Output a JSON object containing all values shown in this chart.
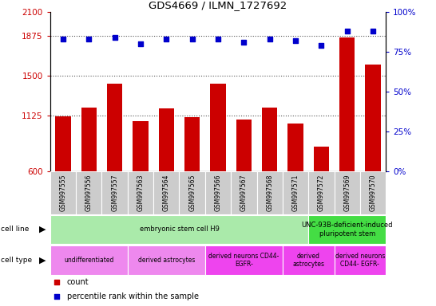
{
  "title": "GDS4669 / ILMN_1727692",
  "samples": [
    "GSM997555",
    "GSM997556",
    "GSM997557",
    "GSM997563",
    "GSM997564",
    "GSM997565",
    "GSM997566",
    "GSM997567",
    "GSM997568",
    "GSM997571",
    "GSM997572",
    "GSM997569",
    "GSM997570"
  ],
  "counts": [
    1120,
    1200,
    1430,
    1070,
    1190,
    1110,
    1430,
    1090,
    1200,
    1050,
    830,
    1860,
    1610
  ],
  "percentiles": [
    83,
    83,
    84,
    80,
    83,
    83,
    83,
    81,
    83,
    82,
    79,
    88,
    88
  ],
  "ylim_left": [
    600,
    2100
  ],
  "ylim_right": [
    0,
    100
  ],
  "yticks_left": [
    600,
    1125,
    1500,
    1875,
    2100
  ],
  "yticks_right": [
    0,
    25,
    50,
    75,
    100
  ],
  "bar_color": "#cc0000",
  "scatter_color": "#0000cc",
  "cell_line_groups": [
    {
      "label": "embryonic stem cell H9",
      "start": 0,
      "end": 10,
      "color": "#aaeaaa"
    },
    {
      "label": "UNC-93B-deficient-induced\npluripotent stem",
      "start": 10,
      "end": 13,
      "color": "#44dd44"
    }
  ],
  "cell_type_groups": [
    {
      "label": "undifferentiated",
      "start": 0,
      "end": 3,
      "color": "#ee88ee"
    },
    {
      "label": "derived astrocytes",
      "start": 3,
      "end": 6,
      "color": "#ee88ee"
    },
    {
      "label": "derived neurons CD44-\nEGFR-",
      "start": 6,
      "end": 9,
      "color": "#ee44ee"
    },
    {
      "label": "derived\nastrocytes",
      "start": 9,
      "end": 11,
      "color": "#ee44ee"
    },
    {
      "label": "derived neurons\nCD44- EGFR-",
      "start": 11,
      "end": 13,
      "color": "#ee44ee"
    }
  ],
  "legend_count_color": "#cc0000",
  "legend_pct_color": "#0000cc",
  "dotted_line_color": "#555555",
  "xtick_bg": "#cccccc"
}
